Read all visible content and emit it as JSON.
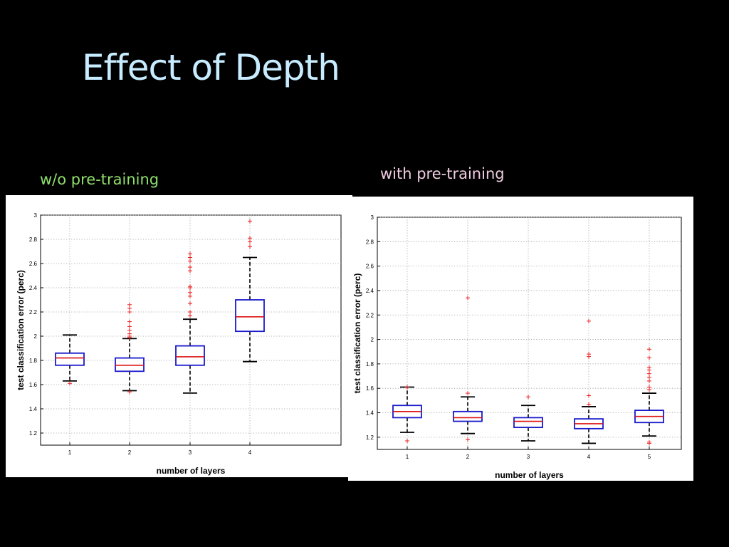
{
  "slide": {
    "title": "Effect of Depth",
    "left_label": "w/o pre-training",
    "right_label": "with pre-training"
  },
  "colors": {
    "background": "#000000",
    "title": "#c8ecff",
    "left_label": "#8ee06a",
    "right_label": "#f0cce0",
    "box": "#1a1acc",
    "median": "#dd1111",
    "outlier": "#ee2222",
    "whisker": "#000000"
  },
  "chart_data": [
    {
      "type": "boxplot",
      "xlabel": "number of layers",
      "ylabel": "test classification error (perc)",
      "categories": [
        "1",
        "2",
        "3",
        "4"
      ],
      "ylim": [
        1.1,
        3.0
      ],
      "y_ticks": [
        "1.2",
        "1.4",
        "1.6",
        "1.8",
        "2",
        "2.2",
        "2.4",
        "2.6",
        "2.8",
        "3"
      ],
      "grid": true,
      "boxes": [
        {
          "category": "1",
          "whisker_low": 1.63,
          "q1": 1.76,
          "median": 1.82,
          "q3": 1.86,
          "whisker_high": 2.01,
          "outliers": [
            1.61
          ]
        },
        {
          "category": "2",
          "whisker_low": 1.55,
          "q1": 1.71,
          "median": 1.76,
          "q3": 1.82,
          "whisker_high": 1.98,
          "outliers": [
            1.54,
            1.99,
            2.0,
            2.02,
            2.05,
            2.08,
            2.12,
            2.2,
            2.23,
            2.26
          ]
        },
        {
          "category": "3",
          "whisker_low": 1.53,
          "q1": 1.76,
          "median": 1.83,
          "q3": 1.92,
          "whisker_high": 2.14,
          "outliers": [
            2.17,
            2.2,
            2.27,
            2.33,
            2.36,
            2.4,
            2.41,
            2.54,
            2.57,
            2.62,
            2.65,
            2.68
          ]
        },
        {
          "category": "4",
          "whisker_low": 1.79,
          "q1": 2.04,
          "median": 2.16,
          "q3": 2.3,
          "whisker_high": 2.65,
          "outliers": [
            2.74,
            2.78,
            2.81,
            2.95
          ]
        }
      ]
    },
    {
      "type": "boxplot",
      "xlabel": "number of layers",
      "ylabel": "test classification error (perc)",
      "categories": [
        "1",
        "2",
        "3",
        "4",
        "5"
      ],
      "ylim": [
        1.1,
        3.0
      ],
      "y_ticks": [
        "1.2",
        "1.4",
        "1.6",
        "1.8",
        "2",
        "2.2",
        "2.4",
        "2.6",
        "2.8",
        "3"
      ],
      "grid": true,
      "boxes": [
        {
          "category": "1",
          "whisker_low": 1.24,
          "q1": 1.36,
          "median": 1.41,
          "q3": 1.46,
          "whisker_high": 1.61,
          "outliers": [
            1.17,
            1.61
          ]
        },
        {
          "category": "2",
          "whisker_low": 1.23,
          "q1": 1.33,
          "median": 1.36,
          "q3": 1.41,
          "whisker_high": 1.53,
          "outliers": [
            1.18,
            1.56,
            2.34
          ]
        },
        {
          "category": "3",
          "whisker_low": 1.17,
          "q1": 1.28,
          "median": 1.33,
          "q3": 1.36,
          "whisker_high": 1.46,
          "outliers": [
            1.53
          ]
        },
        {
          "category": "4",
          "whisker_low": 1.15,
          "q1": 1.27,
          "median": 1.31,
          "q3": 1.35,
          "whisker_high": 1.45,
          "outliers": [
            1.47,
            1.54,
            1.86,
            1.88,
            2.15
          ]
        },
        {
          "category": "5",
          "whisker_low": 1.21,
          "q1": 1.32,
          "median": 1.37,
          "q3": 1.42,
          "whisker_high": 1.56,
          "outliers": [
            1.15,
            1.16,
            1.59,
            1.61,
            1.66,
            1.69,
            1.72,
            1.75,
            1.77,
            1.85,
            1.92
          ]
        }
      ]
    }
  ]
}
